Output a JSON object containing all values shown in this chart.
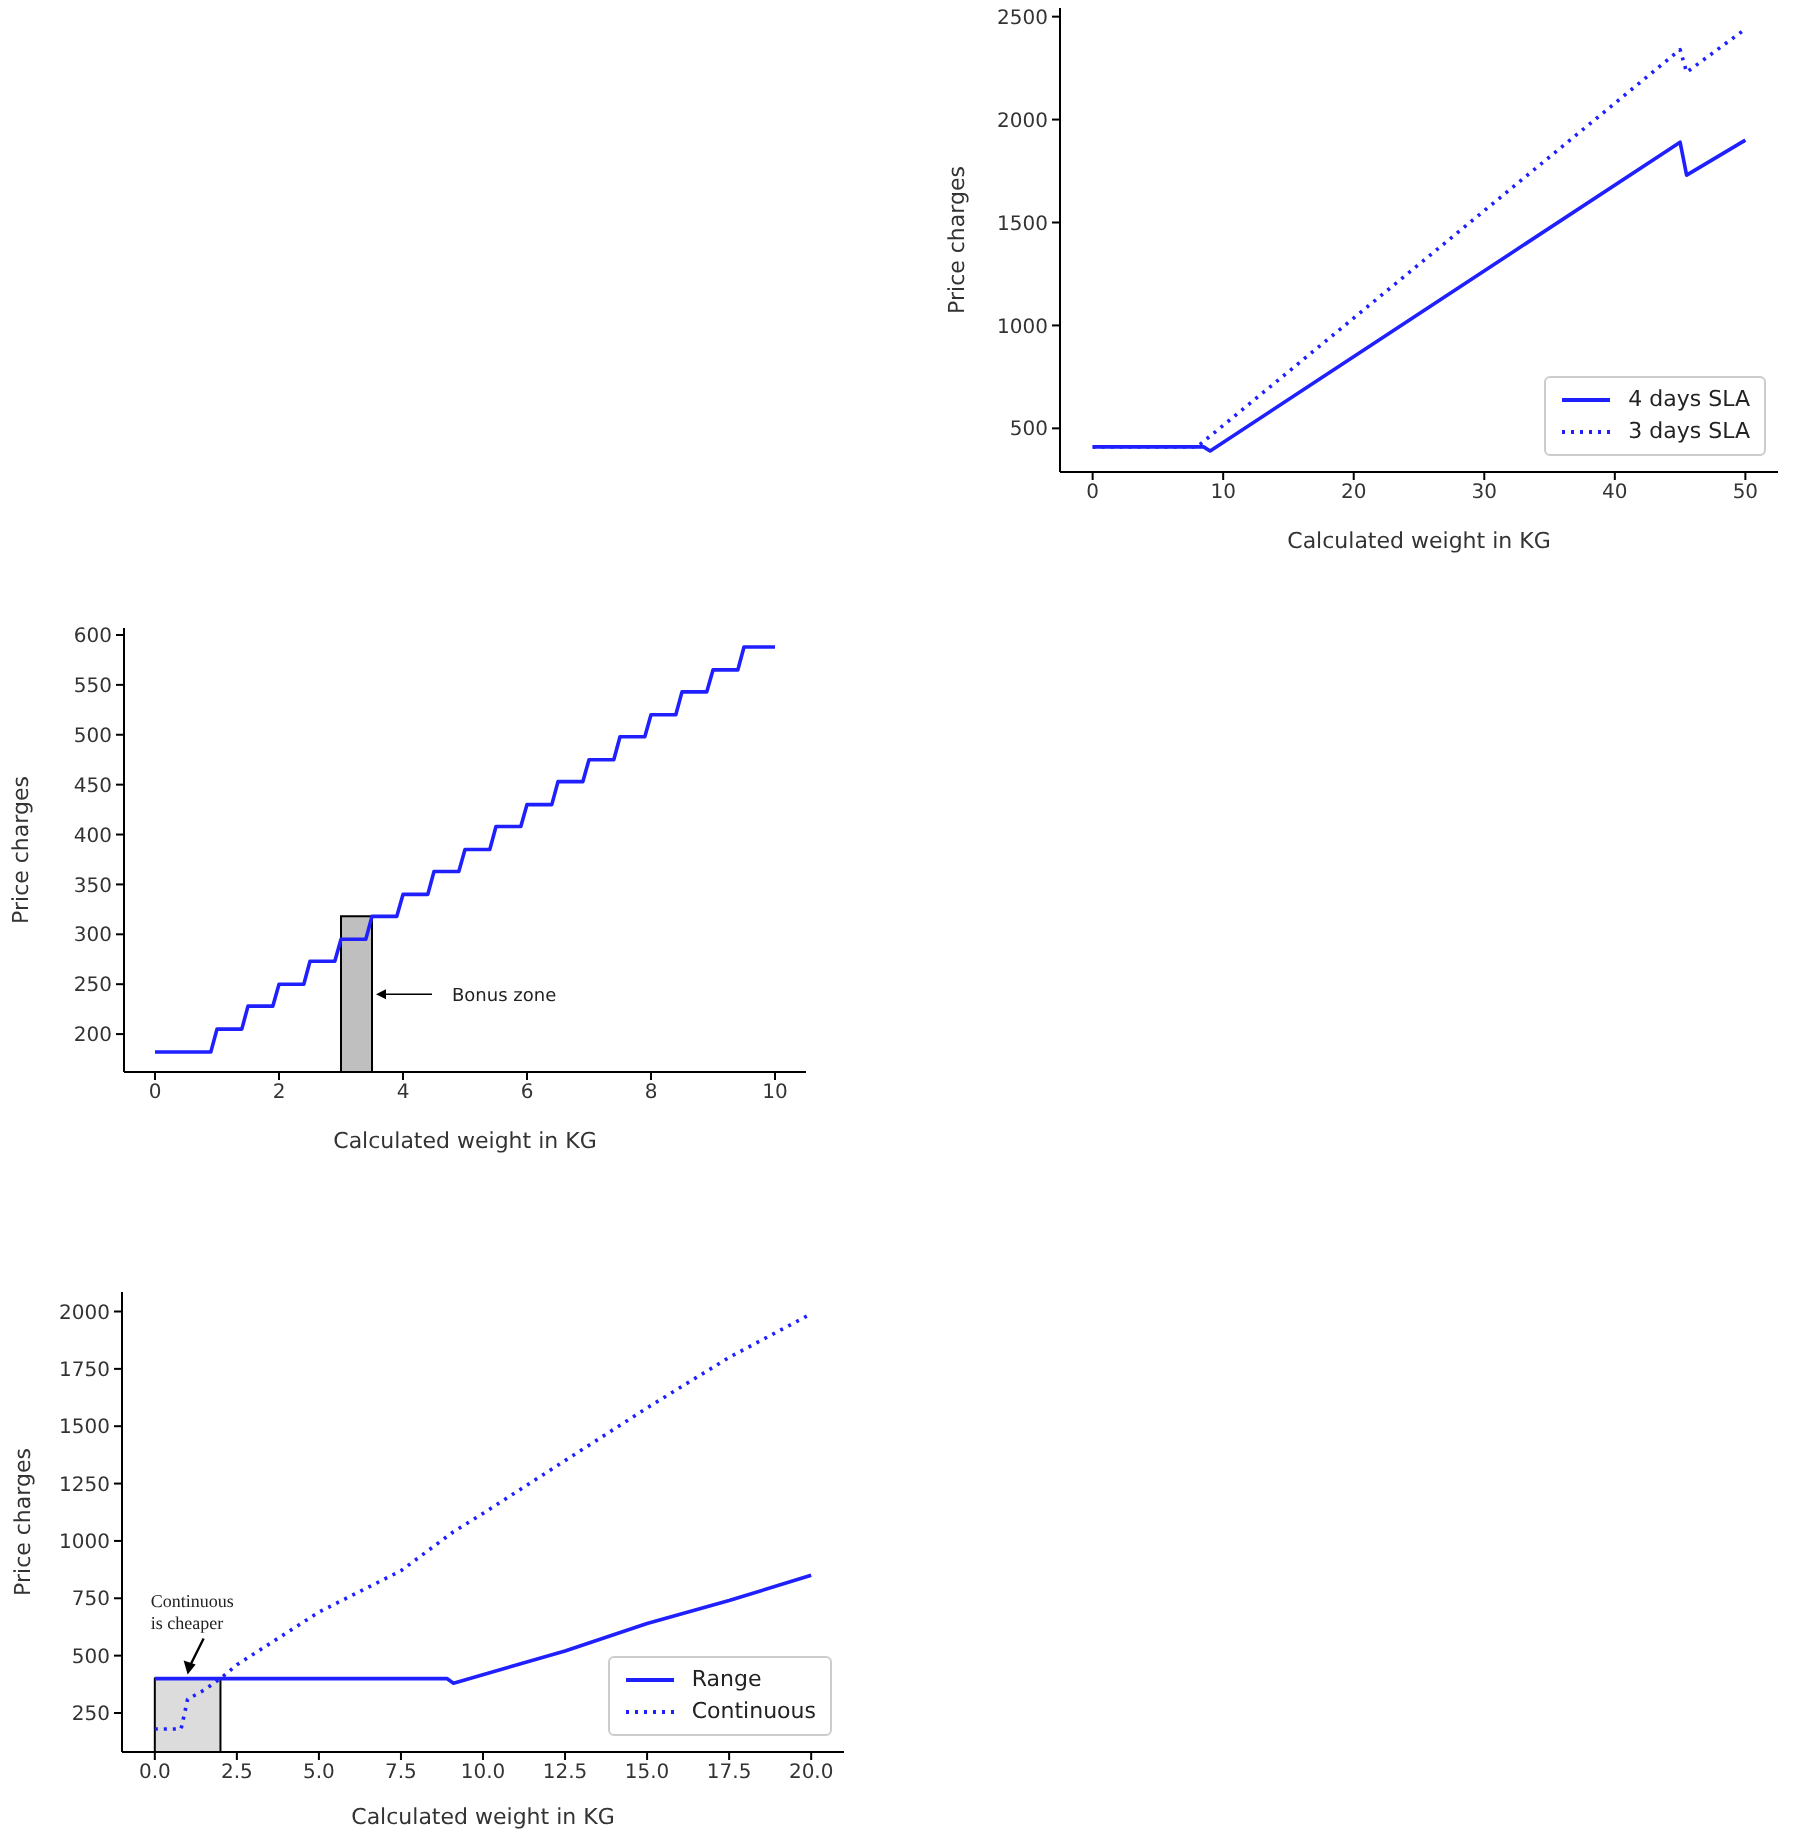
{
  "chart_data": [
    {
      "type": "line",
      "xlabel": "Calculated weight in KG",
      "ylabel": "Price charges",
      "xlim": [
        -2.5,
        52.5
      ],
      "ylim": [
        288,
        2542
      ],
      "xticks": [
        0,
        10,
        20,
        30,
        40,
        50
      ],
      "yticks": [
        500,
        1000,
        1500,
        2000,
        2500
      ],
      "legend": "bottom right",
      "grid": false,
      "series": [
        {
          "name": "4 days SLA",
          "color": "#2020ff",
          "line_style": "solid",
          "x": [
            0,
            8.5,
            9,
            45,
            45.5,
            50
          ],
          "values": [
            410,
            410,
            390,
            1890,
            1730,
            1900
          ]
        },
        {
          "name": "3 days SLA",
          "color": "#2020ff",
          "line_style": "dotted",
          "x": [
            0,
            8,
            45,
            45.5,
            50
          ],
          "values": [
            410,
            410,
            2340,
            2230,
            2440
          ]
        }
      ]
    },
    {
      "type": "line",
      "xlabel": "Calculated weight in KG",
      "ylabel": "Price charges",
      "xlim": [
        -0.5,
        10.5
      ],
      "ylim": [
        162,
        607
      ],
      "xticks": [
        0,
        2,
        4,
        6,
        8,
        10
      ],
      "yticks": [
        200,
        250,
        300,
        350,
        400,
        450,
        500,
        550,
        600
      ],
      "legend": false,
      "grid": false,
      "bands": [
        {
          "axis": "x",
          "from": 3,
          "to": 3.5,
          "label": "Bonus zone",
          "color": "#bfbfbf"
        }
      ],
      "series": [
        {
          "color": "#2020ff",
          "line_style": "solid",
          "x": [
            0,
            0.9,
            1,
            1.4,
            1.5,
            1.9,
            2,
            2.4,
            2.5,
            2.9,
            3,
            3.4,
            3.5,
            3.9,
            4,
            4.4,
            4.5,
            4.9,
            5,
            5.4,
            5.5,
            5.9,
            6,
            6.4,
            6.5,
            6.9,
            7,
            7.4,
            7.5,
            7.9,
            8,
            8.4,
            8.5,
            8.9,
            9,
            9.4,
            9.5,
            10
          ],
          "values": [
            182,
            182,
            205,
            205,
            228,
            228,
            250,
            250,
            273,
            273,
            295,
            295,
            318,
            318,
            340,
            340,
            363,
            363,
            385,
            385,
            408,
            408,
            430,
            430,
            453,
            453,
            475,
            475,
            498,
            498,
            520,
            520,
            543,
            543,
            565,
            565,
            588,
            588
          ]
        }
      ]
    },
    {
      "type": "line",
      "xlabel": "Calculated weight in KG",
      "ylabel": "Price charges",
      "xlim": [
        -1,
        21
      ],
      "ylim": [
        80,
        2085
      ],
      "xticks": [
        {
          "value": 0,
          "label": "0.0"
        },
        {
          "value": 2.5,
          "label": "2.5"
        },
        {
          "value": 5,
          "label": "5.0"
        },
        {
          "value": 7.5,
          "label": "7.5"
        },
        {
          "value": 10,
          "label": "10.0"
        },
        {
          "value": 12.5,
          "label": "12.5"
        },
        {
          "value": 15,
          "label": "15.0"
        },
        {
          "value": 17.5,
          "label": "17.5"
        },
        {
          "value": 20,
          "label": "20.0"
        }
      ],
      "yticks": [
        250,
        500,
        750,
        1000,
        1250,
        1500,
        1750,
        2000
      ],
      "legend": "bottom right",
      "grid": false,
      "bands": [
        {
          "axis": "x",
          "from": 0,
          "to": 2,
          "label": "Continuous is cheaper",
          "color": "#dcdcdc"
        }
      ],
      "series": [
        {
          "name": "Range",
          "color": "#2020ff",
          "line_style": "solid",
          "x": [
            0,
            8.9,
            9.1,
            12.5,
            15,
            17.5,
            20
          ],
          "values": [
            400,
            400,
            380,
            520,
            640,
            740,
            850
          ]
        },
        {
          "name": "Continuous",
          "color": "#2020ff",
          "line_style": "dotted",
          "x": [
            0,
            0.8,
            1,
            1.5,
            2,
            2.5,
            5,
            7.5,
            9.1,
            10,
            12.5,
            15,
            17.5,
            20
          ],
          "values": [
            180,
            180,
            310,
            350,
            400,
            460,
            690,
            870,
            1040,
            1120,
            1350,
            1580,
            1800,
            1990
          ]
        }
      ]
    }
  ]
}
